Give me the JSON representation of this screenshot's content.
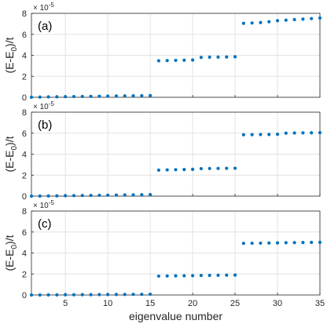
{
  "chart_data": [
    {
      "type": "scatter",
      "panel_label": "(a)",
      "ylabel_text": "(E-E",
      "ylabel_sub": "0",
      "ylabel_tail": ")/t",
      "scale_base": "× 10",
      "scale_exp": "-5",
      "ylim": [
        0,
        8
      ],
      "xlim": [
        1,
        35
      ],
      "y_ticks": [
        "0",
        "2",
        "4",
        "6",
        "8"
      ],
      "x_ticks": [],
      "grid": true,
      "marker_color": "#0072bd",
      "x": [
        1,
        2,
        3,
        4,
        5,
        6,
        7,
        8,
        9,
        10,
        11,
        12,
        13,
        14,
        15,
        16,
        17,
        18,
        19,
        20,
        21,
        22,
        23,
        24,
        25,
        26,
        27,
        28,
        29,
        30,
        31,
        32,
        33,
        34,
        35
      ],
      "y": [
        0.0,
        0.02,
        0.04,
        0.05,
        0.06,
        0.07,
        0.08,
        0.09,
        0.1,
        0.11,
        0.12,
        0.13,
        0.14,
        0.15,
        0.16,
        3.48,
        3.5,
        3.52,
        3.53,
        3.55,
        3.8,
        3.82,
        3.83,
        3.84,
        3.86,
        7.05,
        7.08,
        7.12,
        7.2,
        7.3,
        7.35,
        7.4,
        7.45,
        7.5,
        7.55
      ]
    },
    {
      "type": "scatter",
      "panel_label": "(b)",
      "ylabel_text": "(E-E",
      "ylabel_sub": "0",
      "ylabel_tail": ")/t",
      "scale_base": "× 10",
      "scale_exp": "-5",
      "ylim": [
        0,
        8
      ],
      "xlim": [
        1,
        35
      ],
      "y_ticks": [
        "0",
        "2",
        "4",
        "6",
        "8"
      ],
      "x_ticks": [],
      "grid": true,
      "marker_color": "#0072bd",
      "x": [
        1,
        2,
        3,
        4,
        5,
        6,
        7,
        8,
        9,
        10,
        11,
        12,
        13,
        14,
        15,
        16,
        17,
        18,
        19,
        20,
        21,
        22,
        23,
        24,
        25,
        26,
        27,
        28,
        29,
        30,
        31,
        32,
        33,
        34,
        35
      ],
      "y": [
        0.0,
        0.01,
        0.02,
        0.03,
        0.04,
        0.05,
        0.06,
        0.07,
        0.08,
        0.09,
        0.1,
        0.11,
        0.12,
        0.13,
        0.14,
        2.48,
        2.5,
        2.52,
        2.53,
        2.55,
        2.62,
        2.63,
        2.64,
        2.65,
        2.66,
        5.85,
        5.86,
        5.87,
        5.88,
        5.9,
        6.0,
        6.02,
        6.03,
        6.04,
        6.05
      ]
    },
    {
      "type": "scatter",
      "panel_label": "(c)",
      "ylabel_text": "(E-E",
      "ylabel_sub": "0",
      "ylabel_tail": ")/t",
      "scale_base": "× 10",
      "scale_exp": "-5",
      "ylim": [
        0,
        8
      ],
      "xlim": [
        1,
        35
      ],
      "y_ticks": [
        "0",
        "2",
        "4",
        "6",
        "8"
      ],
      "x_ticks": [
        "5",
        "10",
        "15",
        "20",
        "25",
        "30",
        "35"
      ],
      "x_tick_values": [
        5,
        10,
        15,
        20,
        25,
        30,
        35
      ],
      "xlabel": "eigenvalue number",
      "grid": true,
      "marker_color": "#0072bd",
      "x": [
        1,
        2,
        3,
        4,
        5,
        6,
        7,
        8,
        9,
        10,
        11,
        12,
        13,
        14,
        15,
        16,
        17,
        18,
        19,
        20,
        21,
        22,
        23,
        24,
        25,
        26,
        27,
        28,
        29,
        30,
        31,
        32,
        33,
        34,
        35
      ],
      "y": [
        0.0,
        0.0,
        0.01,
        0.01,
        0.02,
        0.02,
        0.03,
        0.03,
        0.04,
        0.04,
        0.05,
        0.05,
        0.06,
        0.06,
        0.07,
        1.8,
        1.81,
        1.82,
        1.83,
        1.84,
        1.86,
        1.87,
        1.88,
        1.89,
        1.9,
        4.92,
        4.93,
        4.94,
        4.95,
        4.96,
        4.98,
        4.99,
        5.0,
        5.01,
        5.02
      ]
    }
  ]
}
